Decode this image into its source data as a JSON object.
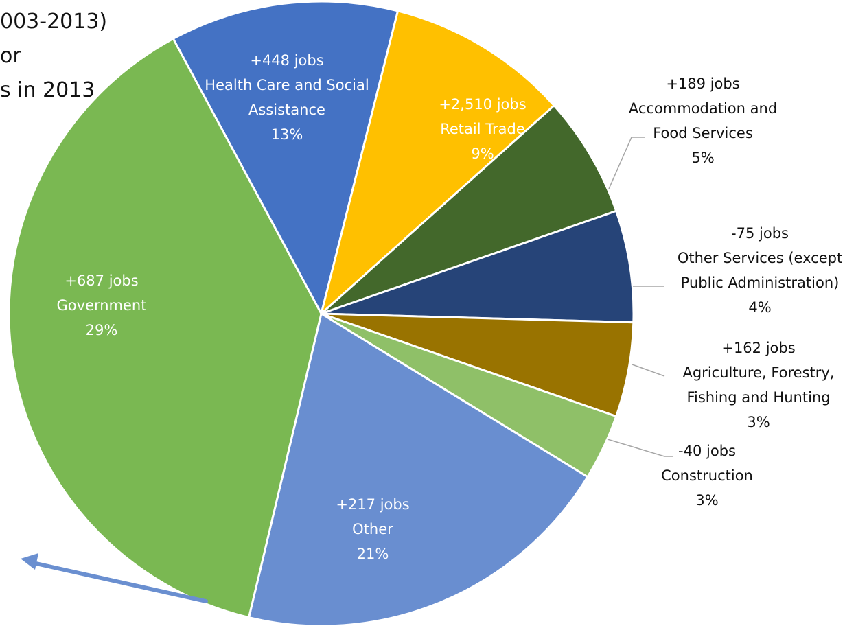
{
  "title_lines": [
    "003-2013)",
    "or",
    "s in 2013"
  ],
  "chart_data": {
    "type": "pie",
    "slices": [
      {
        "label": "Health Care and Social Assistance",
        "change": "+448 jobs",
        "percent": 13,
        "pct_label": "13%",
        "color": "#4472C4"
      },
      {
        "label": "Retail Trade",
        "change": "+2,510 jobs",
        "percent": 9,
        "pct_label": "9%",
        "color": "#FFC000"
      },
      {
        "label": "Accommodation and Food Services",
        "change": "+189 jobs",
        "percent": 5,
        "pct_label": "5%",
        "color": "#43682B"
      },
      {
        "label": "Other Services (except Public Administration)",
        "change": "-75 jobs",
        "percent": 4,
        "pct_label": "4%",
        "color": "#264478"
      },
      {
        "label": "Agriculture, Forestry, Fishing and Hunting",
        "change": "+162 jobs",
        "percent": 3,
        "pct_label": "3%",
        "color": "#997300"
      },
      {
        "label": "Construction",
        "change": "-40 jobs",
        "percent": 3,
        "pct_label": "3%",
        "color": "#8FC068"
      },
      {
        "label": "Other",
        "change": "+217 jobs",
        "percent": 21,
        "pct_label": "21%",
        "color": "#698ED0"
      },
      {
        "label": "Government",
        "change": "+687 jobs",
        "percent": 29,
        "pct_label": "29%",
        "color": "#7AB852"
      }
    ],
    "colors": {
      "slice_border": "#ffffff",
      "leader_line": "#A6A6A6",
      "arrow": "#6A8FD0"
    }
  }
}
